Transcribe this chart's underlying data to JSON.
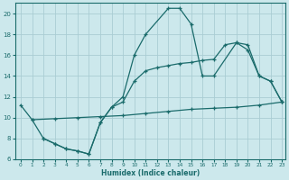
{
  "xlabel": "Humidex (Indice chaleur)",
  "bg_color": "#cce8ec",
  "grid_color": "#aacdd4",
  "line_color": "#1a6b6b",
  "xlim": [
    -0.5,
    23.3
  ],
  "ylim": [
    6,
    21
  ],
  "xticks": [
    0,
    1,
    2,
    3,
    4,
    5,
    6,
    7,
    8,
    9,
    10,
    11,
    12,
    13,
    14,
    15,
    16,
    17,
    18,
    19,
    20,
    21,
    22,
    23
  ],
  "yticks": [
    6,
    8,
    10,
    12,
    14,
    16,
    18,
    20
  ],
  "line1_x": [
    0,
    1,
    2,
    3,
    4,
    5,
    6,
    7,
    8,
    9,
    10,
    11,
    13,
    14,
    15,
    16,
    17,
    19,
    20,
    21,
    22,
    23
  ],
  "line1_y": [
    11.2,
    9.8,
    8.0,
    7.5,
    7.0,
    6.8,
    6.5,
    9.5,
    11.0,
    12.0,
    16.0,
    18.0,
    20.5,
    20.5,
    19.0,
    14.0,
    14.0,
    17.2,
    16.5,
    14.0,
    13.5,
    11.5
  ],
  "line2_x": [
    1,
    3,
    5,
    7,
    9,
    11,
    13,
    15,
    17,
    19,
    21,
    23
  ],
  "line2_y": [
    9.8,
    9.9,
    10.0,
    10.1,
    10.2,
    10.4,
    10.6,
    10.8,
    10.9,
    11.0,
    11.2,
    11.5
  ],
  "line3_x": [
    2,
    3,
    4,
    5,
    6,
    7,
    8,
    9,
    10,
    11,
    12,
    13,
    14,
    15,
    16,
    17,
    18,
    19,
    20,
    21,
    22,
    23
  ],
  "line3_y": [
    8.0,
    7.5,
    7.0,
    6.8,
    6.5,
    9.5,
    11.0,
    11.5,
    13.5,
    14.5,
    14.8,
    15.0,
    15.2,
    15.3,
    15.5,
    15.6,
    17.0,
    17.2,
    17.0,
    14.0,
    13.5,
    11.5
  ]
}
